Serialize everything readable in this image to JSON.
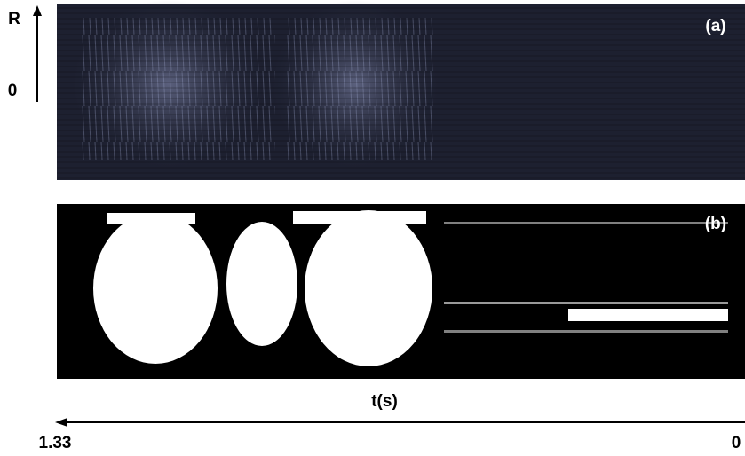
{
  "figure": {
    "panels": [
      {
        "label": "(a)"
      },
      {
        "label": "(b)"
      }
    ],
    "y_axis": {
      "label": "R",
      "origin": "0"
    },
    "x_axis": {
      "label": "t(s)",
      "start": "1.33",
      "end": "0"
    }
  }
}
